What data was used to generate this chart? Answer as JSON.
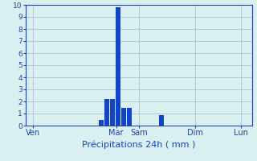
{
  "title": "",
  "xlabel": "Précipitations 24h ( mm )",
  "ylabel": "",
  "background_color": "#daf0f0",
  "bar_color": "#1044cc",
  "grid_color": "#aacece",
  "axis_color": "#2244aa",
  "tick_label_color": "#2244aa",
  "xlabel_color": "#1044cc",
  "ylim": [
    0,
    10
  ],
  "xlim": [
    0,
    120
  ],
  "day_labels": [
    "Ven",
    "Mar",
    "Sam",
    "Dim",
    "Lun"
  ],
  "day_positions": [
    4,
    48,
    60,
    90,
    114
  ],
  "bars": [
    {
      "x": 40,
      "height": 0.5
    },
    {
      "x": 43,
      "height": 2.2
    },
    {
      "x": 46,
      "height": 2.2
    },
    {
      "x": 49,
      "height": 9.8
    },
    {
      "x": 52,
      "height": 1.5
    },
    {
      "x": 55,
      "height": 1.5
    },
    {
      "x": 72,
      "height": 0.9
    }
  ],
  "bar_width": 2.5,
  "yticks": [
    0,
    1,
    2,
    3,
    4,
    5,
    6,
    7,
    8,
    9,
    10
  ]
}
